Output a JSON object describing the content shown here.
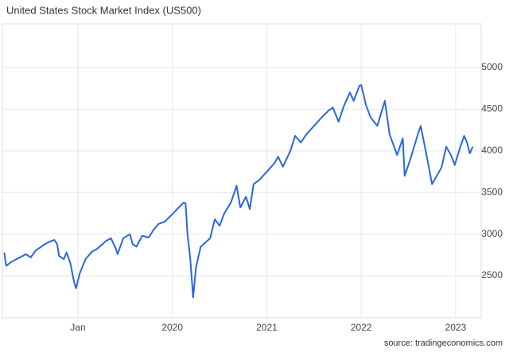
{
  "chart_data": {
    "type": "line",
    "title": "United States Stock Market Index (US500)",
    "source": "source: tradingeconomics.com",
    "x": [
      2018.22,
      2018.24,
      2018.3,
      2018.35,
      2018.4,
      2018.45,
      2018.5,
      2018.55,
      2018.6,
      2018.65,
      2018.7,
      2018.75,
      2018.78,
      2018.8,
      2018.85,
      2018.88,
      2018.92,
      2018.96,
      2018.98,
      2019.02,
      2019.08,
      2019.15,
      2019.2,
      2019.3,
      2019.35,
      2019.4,
      2019.42,
      2019.48,
      2019.55,
      2019.58,
      2019.62,
      2019.68,
      2019.75,
      2019.8,
      2019.85,
      2019.92,
      2020.0,
      2020.05,
      2020.12,
      2020.14,
      2020.16,
      2020.19,
      2020.22,
      2020.25,
      2020.3,
      2020.35,
      2020.4,
      2020.45,
      2020.5,
      2020.55,
      2020.62,
      2020.68,
      2020.72,
      2020.78,
      2020.82,
      2020.86,
      2020.92,
      2021.0,
      2021.08,
      2021.12,
      2021.17,
      2021.25,
      2021.3,
      2021.36,
      2021.42,
      2021.5,
      2021.58,
      2021.65,
      2021.7,
      2021.76,
      2021.82,
      2021.88,
      2021.92,
      2021.98,
      2022.0,
      2022.05,
      2022.1,
      2022.17,
      2022.25,
      2022.3,
      2022.38,
      2022.44,
      2022.46,
      2022.52,
      2022.6,
      2022.63,
      2022.7,
      2022.75,
      2022.8,
      2022.85,
      2022.9,
      2022.95,
      2022.99,
      2023.05,
      2023.09,
      2023.12,
      2023.15,
      2023.18
    ],
    "series": [
      {
        "name": "US500",
        "color": "#2b66e0",
        "values": [
          2780,
          2620,
          2670,
          2700,
          2730,
          2760,
          2720,
          2800,
          2840,
          2880,
          2910,
          2930,
          2880,
          2740,
          2700,
          2780,
          2650,
          2420,
          2350,
          2530,
          2700,
          2790,
          2820,
          2920,
          2950,
          2830,
          2760,
          2950,
          3000,
          2880,
          2850,
          2980,
          2960,
          3050,
          3120,
          3150,
          3240,
          3300,
          3380,
          3370,
          3000,
          2700,
          2240,
          2600,
          2850,
          2900,
          2950,
          3180,
          3100,
          3250,
          3380,
          3580,
          3320,
          3450,
          3300,
          3600,
          3650,
          3750,
          3850,
          3930,
          3810,
          4000,
          4180,
          4100,
          4200,
          4300,
          4400,
          4480,
          4520,
          4350,
          4550,
          4700,
          4600,
          4780,
          4790,
          4550,
          4400,
          4300,
          4600,
          4200,
          3950,
          4150,
          3700,
          3900,
          4200,
          4300,
          3900,
          3600,
          3700,
          3800,
          4050,
          3950,
          3830,
          4050,
          4180,
          4100,
          3970,
          4050
        ]
      }
    ],
    "xlim": [
      2018.2,
      2023.27
    ],
    "xticks": [
      {
        "value": 2019,
        "label": "Jan"
      },
      2020,
      2021,
      2022,
      2023
    ],
    "ylim": [
      1995,
      5525
    ],
    "yticks": [
      2500,
      3000,
      3500,
      4000,
      4500,
      5000
    ],
    "grid": true
  }
}
